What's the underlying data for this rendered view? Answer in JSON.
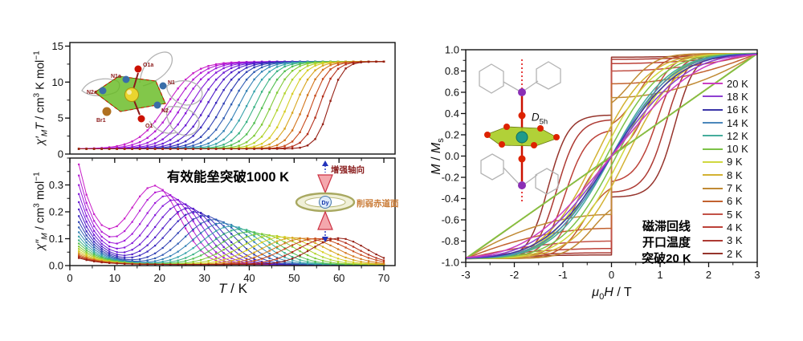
{
  "figure": {
    "background": "#ffffff"
  },
  "chart_data": [
    {
      "id": "chi_t",
      "type": "line",
      "title": "",
      "ylabel_html": "<i>χ′<sub>M</sub>T</i> / cm<sup>3</sup> K mol<sup>−1</sup>",
      "xlim": [
        0,
        72.5
      ],
      "ylim": [
        0,
        15.5
      ],
      "yticks": {
        "values": [
          0,
          5,
          10,
          15
        ],
        "labels": [
          "0",
          "5",
          "10",
          "15"
        ]
      },
      "grid": false,
      "legend_position": "none",
      "series_model": "sigmoid",
      "low": 0.72,
      "high": 12.85,
      "series": [
        {
          "color": "#c81ec8",
          "t_mid": 21.5,
          "w": 3.2
        },
        {
          "color": "#b51bd3",
          "t_mid": 23.3,
          "w": 3.1
        },
        {
          "color": "#9f19da",
          "t_mid": 25.1,
          "w": 3.0
        },
        {
          "color": "#8519da",
          "t_mid": 26.9,
          "w": 2.95
        },
        {
          "color": "#6b1bd4",
          "t_mid": 28.7,
          "w": 2.9
        },
        {
          "color": "#511ec9",
          "t_mid": 30.5,
          "w": 2.8
        },
        {
          "color": "#3a28bd",
          "t_mid": 32.3,
          "w": 2.75
        },
        {
          "color": "#2e3fb3",
          "t_mid": 34.1,
          "w": 2.65
        },
        {
          "color": "#2f5cb3",
          "t_mid": 35.9,
          "w": 2.6
        },
        {
          "color": "#3380b5",
          "t_mid": 37.7,
          "w": 2.5
        },
        {
          "color": "#36a3ab",
          "t_mid": 39.5,
          "w": 2.45
        },
        {
          "color": "#3ab385",
          "t_mid": 41.3,
          "w": 2.35
        },
        {
          "color": "#52bf52",
          "t_mid": 43.1,
          "w": 2.3
        },
        {
          "color": "#7fca38",
          "t_mid": 44.9,
          "w": 2.2
        },
        {
          "color": "#b1d32b",
          "t_mid": 46.7,
          "w": 2.15
        },
        {
          "color": "#d6cd24",
          "t_mid": 48.5,
          "w": 2.05
        },
        {
          "color": "#d8a51f",
          "t_mid": 50.3,
          "w": 2.0
        },
        {
          "color": "#d3761d",
          "t_mid": 52.1,
          "w": 1.9
        },
        {
          "color": "#c74a1b",
          "t_mid": 53.9,
          "w": 1.8
        },
        {
          "color": "#b42f1a",
          "t_mid": 55.7,
          "w": 1.7
        },
        {
          "color": "#951f14",
          "t_mid": 57.8,
          "w": 1.5
        }
      ]
    },
    {
      "id": "chi_pp",
      "type": "line",
      "title": "",
      "annotation": "有效能垒突破1000 K",
      "ylabel_html": "<i>χ″<sub>M</sub></i> / cm<sup>3</sup> mol<sup>−1</sup>",
      "xlabel_html": "<i>T</i> / K",
      "xlim": [
        0,
        72.5
      ],
      "ylim": [
        0,
        0.4
      ],
      "xticks": {
        "values": [
          0,
          10,
          20,
          30,
          40,
          50,
          60,
          70
        ],
        "labels": [
          "0",
          "10",
          "20",
          "30",
          "40",
          "50",
          "60",
          "70"
        ]
      },
      "yticks": {
        "values": [
          0,
          0.1,
          0.2,
          0.3
        ],
        "labels": [
          "0.0",
          "0.1",
          "0.2",
          "0.3"
        ]
      },
      "grid": false,
      "legend_position": "none",
      "series_model": "decay_peak",
      "tau": 4.5,
      "baseline": 0.004,
      "series": [
        {
          "color": "#c81ec8",
          "s": 0.37,
          "p": 19.0,
          "h": 0.285,
          "w": 5.5
        },
        {
          "color": "#b51bd3",
          "s": 0.33,
          "p": 20.5,
          "h": 0.27,
          "w": 5.6
        },
        {
          "color": "#9f19da",
          "s": 0.295,
          "p": 22.0,
          "h": 0.255,
          "w": 5.7
        },
        {
          "color": "#8519da",
          "s": 0.262,
          "p": 23.5,
          "h": 0.24,
          "w": 5.8
        },
        {
          "color": "#6b1bd4",
          "s": 0.232,
          "p": 25.0,
          "h": 0.225,
          "w": 5.9
        },
        {
          "color": "#511ec9",
          "s": 0.205,
          "p": 26.5,
          "h": 0.21,
          "w": 6.0
        },
        {
          "color": "#3a28bd",
          "s": 0.18,
          "p": 28.0,
          "h": 0.196,
          "w": 6.1
        },
        {
          "color": "#2e3fb3",
          "s": 0.158,
          "p": 30.0,
          "h": 0.182,
          "w": 6.2
        },
        {
          "color": "#2f5cb3",
          "s": 0.138,
          "p": 32.0,
          "h": 0.168,
          "w": 6.3
        },
        {
          "color": "#3380b5",
          "s": 0.12,
          "p": 34.0,
          "h": 0.155,
          "w": 6.4
        },
        {
          "color": "#36a3ab",
          "s": 0.104,
          "p": 36.0,
          "h": 0.143,
          "w": 6.5
        },
        {
          "color": "#3ab385",
          "s": 0.09,
          "p": 38.0,
          "h": 0.132,
          "w": 6.6
        },
        {
          "color": "#52bf52",
          "s": 0.078,
          "p": 40.0,
          "h": 0.122,
          "w": 6.7
        },
        {
          "color": "#7fca38",
          "s": 0.067,
          "p": 42.5,
          "h": 0.114,
          "w": 6.8
        },
        {
          "color": "#b1d32b",
          "s": 0.058,
          "p": 45.0,
          "h": 0.108,
          "w": 6.9
        },
        {
          "color": "#d6cd24",
          "s": 0.05,
          "p": 47.5,
          "h": 0.103,
          "w": 7.0
        },
        {
          "color": "#d8a51f",
          "s": 0.043,
          "p": 50.0,
          "h": 0.1,
          "w": 7.0
        },
        {
          "color": "#d3761d",
          "s": 0.037,
          "p": 52.5,
          "h": 0.098,
          "w": 7.0
        },
        {
          "color": "#c74a1b",
          "s": 0.032,
          "p": 55.0,
          "h": 0.097,
          "w": 7.0
        },
        {
          "color": "#b42f1a",
          "s": 0.028,
          "p": 57.5,
          "h": 0.097,
          "w": 6.5
        },
        {
          "color": "#951f14",
          "s": 0.024,
          "p": 60.0,
          "h": 0.098,
          "w": 6.0
        }
      ]
    },
    {
      "id": "hysteresis",
      "type": "line",
      "title": "",
      "annotation_lines": [
        "磁滞回线",
        "开口温度",
        "突破20 K"
      ],
      "ylabel_html": "<i>M</i> / <i>M</i><sub>s</sub>",
      "xlabel_html": "<i>μ</i><sub>0</sub><i>H</i> / T",
      "xlim": [
        -3,
        3
      ],
      "ylim": [
        -1,
        1
      ],
      "xticks": {
        "values": [
          -3,
          -2,
          -1,
          0,
          1,
          2,
          3
        ],
        "labels": [
          "-3",
          "-2",
          "-1",
          "0",
          "1",
          "2",
          "3"
        ]
      },
      "yticks": {
        "values": [
          -1,
          -0.8,
          -0.6,
          -0.4,
          -0.2,
          0,
          0.2,
          0.4,
          0.6,
          0.8,
          1
        ],
        "labels": [
          "-1.0",
          "-0.8",
          "-0.6",
          "-0.4",
          "-0.2",
          "0.0",
          "0.2",
          "0.4",
          "0.6",
          "0.8",
          "1.0"
        ]
      },
      "grid": false,
      "legend_position": "inside-right",
      "series_model": "hysteresis",
      "sat": 0.965,
      "series": [
        {
          "label": "20 K",
          "color": "#cb3ec1",
          "model": "closed",
          "a": 0.58
        },
        {
          "label": "18 K",
          "color": "#8e3fd1",
          "model": "closed",
          "a": 0.66
        },
        {
          "label": "16 K",
          "color": "#3b35a8",
          "model": "closed",
          "a": 0.74
        },
        {
          "label": "14 K",
          "color": "#4b87bb",
          "model": "closed",
          "a": 0.8
        },
        {
          "label": "12 K",
          "color": "#46ad9c",
          "model": "closed",
          "a": 0.86
        },
        {
          "label": "10 K",
          "color": "#7cc247",
          "model": "lens",
          "a": 0.9,
          "hc": 0.1
        },
        {
          "label": "9 K",
          "color": "#d0d83f",
          "model": "lens",
          "a": 0.93,
          "hc": 0.2
        },
        {
          "label": "8 K",
          "color": "#d3b232",
          "model": "lens",
          "a": 0.96,
          "hc": 0.32
        },
        {
          "label": "7 K",
          "color": "#c08a34",
          "model": "step",
          "pre": -0.55,
          "top": 0.5,
          "hr": 0.38,
          "w": 0.55
        },
        {
          "label": "6 K",
          "color": "#c2622f",
          "model": "step",
          "pre": -0.68,
          "top": 0.3,
          "hr": 0.55,
          "w": 0.52
        },
        {
          "label": "5 K",
          "color": "#c25247",
          "model": "step",
          "pre": -0.8,
          "top": 0.02,
          "hr": 0.75,
          "w": 0.5
        },
        {
          "label": "4 K",
          "color": "#bc4138",
          "model": "step",
          "pre": -0.87,
          "top": -0.24,
          "hr": 0.95,
          "w": 0.46
        },
        {
          "label": "3 K",
          "color": "#ad3a33",
          "model": "step",
          "pre": -0.91,
          "top": -0.34,
          "hr": 1.12,
          "w": 0.43
        },
        {
          "label": "2 K",
          "color": "#96342c",
          "model": "step",
          "pre": -0.93,
          "top": -0.385,
          "hr": 1.3,
          "w": 0.41
        }
      ]
    }
  ],
  "insets": {
    "left_molecule": {
      "atoms": {
        "o1a": "O1a",
        "n1a": "N1a",
        "n1": "N1",
        "n2a": "N2a",
        "n2": "N2",
        "br1": "Br1",
        "o1": "O1"
      }
    },
    "right_molecule": {
      "symmetry_html": "<i>D</i><sub>5h</sub>"
    },
    "schematic": {
      "axial": "增强轴向",
      "equatorial": "削弱赤道面",
      "center": "Dy"
    }
  }
}
